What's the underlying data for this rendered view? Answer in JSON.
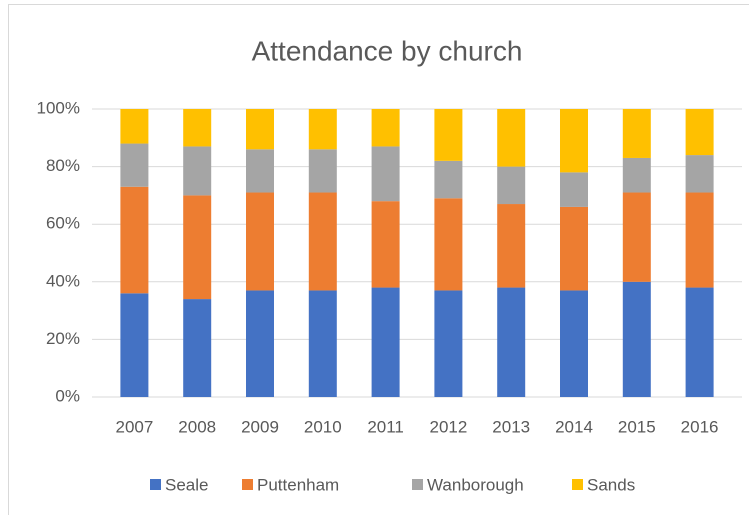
{
  "chart_data": {
    "type": "stacked_bar",
    "title": "Attendance by church",
    "categories": [
      "2007",
      "2008",
      "2009",
      "2010",
      "2011",
      "2012",
      "2013",
      "2014",
      "2015",
      "2016"
    ],
    "series": [
      {
        "name": "Seale",
        "color": "#4472c4",
        "values": [
          36,
          34,
          37,
          37,
          38,
          37,
          38,
          37,
          40,
          38
        ]
      },
      {
        "name": "Puttenham",
        "color": "#ed7d31",
        "values": [
          37,
          36,
          34,
          34,
          30,
          32,
          29,
          29,
          31,
          33
        ]
      },
      {
        "name": "Wanborough",
        "color": "#a5a5a5",
        "values": [
          15,
          17,
          15,
          15,
          19,
          13,
          13,
          12,
          12,
          13
        ]
      },
      {
        "name": "Sands",
        "color": "#ffc000",
        "values": [
          12,
          13,
          14,
          14,
          13,
          18,
          20,
          22,
          17,
          16
        ]
      }
    ],
    "ylim": [
      0,
      100
    ],
    "yticks": [
      {
        "value": 0,
        "label": "0%"
      },
      {
        "value": 20,
        "label": "20%"
      },
      {
        "value": 40,
        "label": "40%"
      },
      {
        "value": 60,
        "label": "60%"
      },
      {
        "value": 80,
        "label": "80%"
      },
      {
        "value": 100,
        "label": "100%"
      }
    ],
    "grid": true,
    "legend": "bottom"
  }
}
